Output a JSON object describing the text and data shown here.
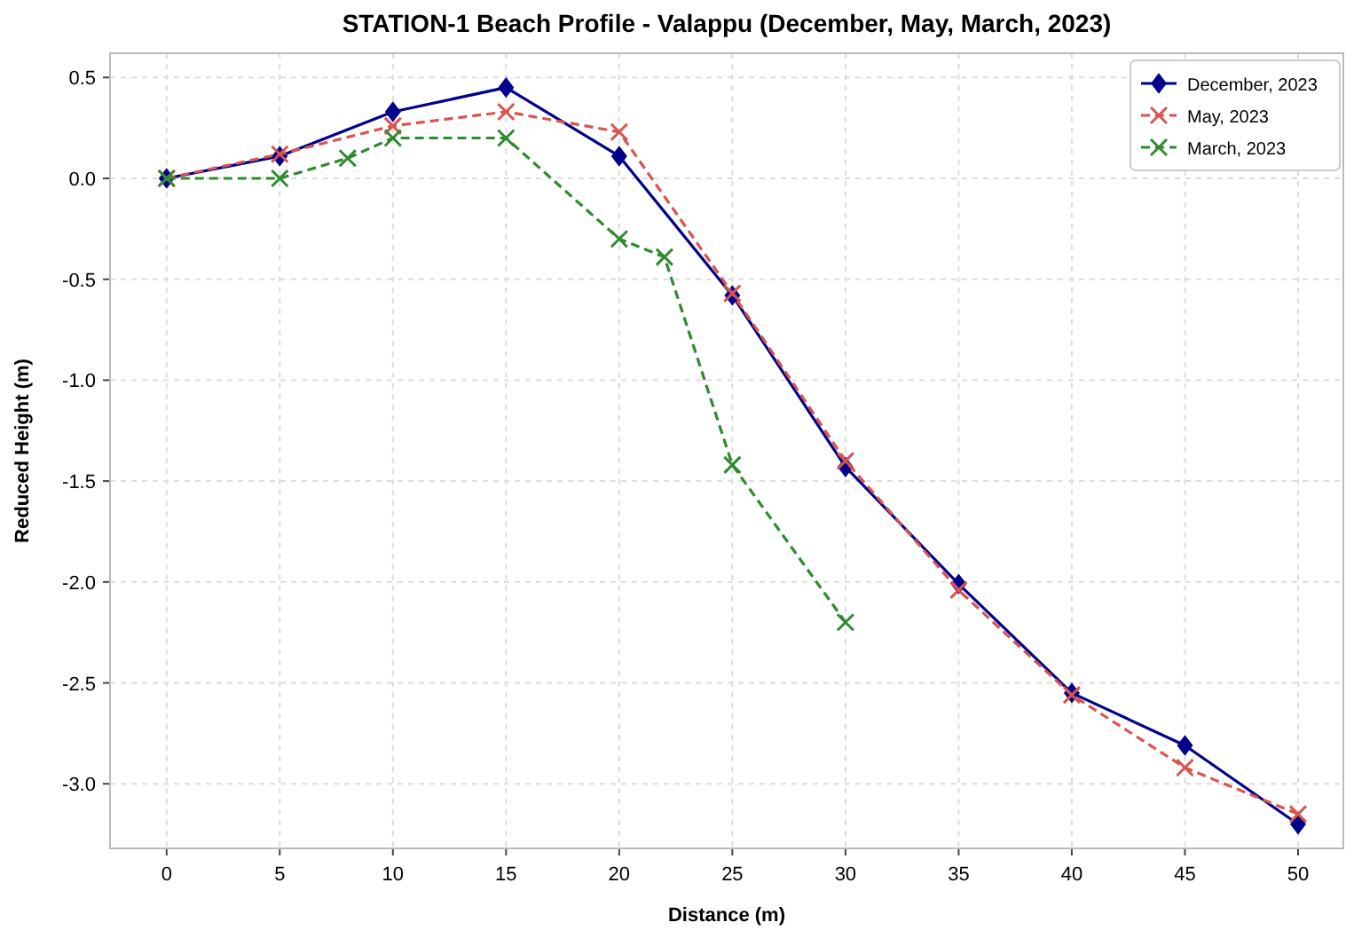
{
  "chart_data": {
    "type": "line",
    "title": "STATION-1 Beach Profile - Valappu (December, May, March, 2023)",
    "xlabel": "Distance (m)",
    "ylabel": "Reduced Height (m)",
    "xlim": [
      -2.5,
      52
    ],
    "xticks": [
      0,
      5,
      10,
      15,
      20,
      25,
      30,
      35,
      40,
      45,
      50
    ],
    "ylim": [
      -3.32,
      0.62
    ],
    "yticks": [
      {
        "value": 0.5,
        "label": "0.5"
      },
      {
        "value": 0,
        "label": "0.0"
      },
      {
        "value": -0.5,
        "label": "-0.5"
      },
      {
        "value": -1,
        "label": "-1.0"
      },
      {
        "value": -1.5,
        "label": "-1.5"
      },
      {
        "value": -2,
        "label": "-2.0"
      },
      {
        "value": -2.5,
        "label": "-2.5"
      },
      {
        "value": -3,
        "label": "-3.0"
      }
    ],
    "grid": true,
    "legend": "top right",
    "series": [
      {
        "name": "December, 2023",
        "color": "#00008b",
        "marker": "diamond",
        "line_style": "solid",
        "x": [
          0,
          5,
          10,
          15,
          20,
          25,
          30,
          35,
          40,
          45,
          50
        ],
        "values": [
          0,
          0.11,
          0.33,
          0.45,
          0.11,
          -0.58,
          -1.43,
          -2.01,
          -2.55,
          -2.81,
          -3.2
        ]
      },
      {
        "name": "May, 2023",
        "color": "#d9534f",
        "marker": "cross",
        "line_style": "dashed",
        "x": [
          0,
          5,
          10,
          15,
          20,
          25,
          30,
          35,
          40,
          45,
          50
        ],
        "values": [
          0,
          0.12,
          0.26,
          0.33,
          0.23,
          -0.57,
          -1.4,
          -2.04,
          -2.56,
          -2.92,
          -3.15
        ]
      },
      {
        "name": "March, 2023",
        "color": "#2e8b2e",
        "marker": "cross",
        "line_style": "dashed",
        "x": [
          0,
          5,
          8,
          10,
          15,
          20,
          22,
          25,
          30
        ],
        "values": [
          0,
          0,
          0.1,
          0.2,
          0.2,
          -0.3,
          -0.39,
          -1.42,
          -2.2
        ]
      }
    ]
  }
}
